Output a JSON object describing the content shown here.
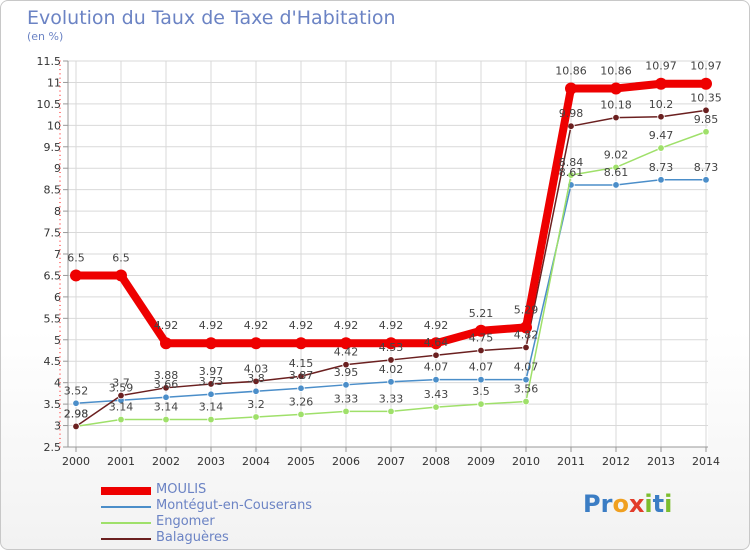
{
  "title": "Evolution du Taux de Taxe d'Habitation",
  "unit_label": "(en %)",
  "logo": [
    "P",
    "r",
    "o",
    "x",
    "i",
    "t",
    "i"
  ],
  "logo_colors": [
    "#3b7dc4",
    "#3b7dc4",
    "#f0a020",
    "#e23c2a",
    "#7dbd2e",
    "#3b7dc4",
    "#7dbd2e"
  ],
  "chart_data": {
    "type": "line",
    "title": "Evolution du Taux de Taxe d'Habitation",
    "ylabel": "(en %)",
    "xlabel": "",
    "ylim": [
      2.5,
      11.5
    ],
    "yticks": [
      2.5,
      3,
      3.5,
      4,
      4.5,
      5,
      5.5,
      6,
      6.5,
      7,
      7.5,
      8,
      8.5,
      9,
      9.5,
      10,
      10.5,
      11,
      11.5
    ],
    "grid": true,
    "legend_position": "bottom-left",
    "x": [
      "2000",
      "2001",
      "2002",
      "2003",
      "2004",
      "2005",
      "2006",
      "2007",
      "2008",
      "2009",
      "2010",
      "2011",
      "2012",
      "2013",
      "2014"
    ],
    "series": [
      {
        "name": "MOULIS",
        "color": "#ee0000",
        "values": [
          6.5,
          6.5,
          4.92,
          4.92,
          4.92,
          4.92,
          4.92,
          4.92,
          4.92,
          5.21,
          5.29,
          10.86,
          10.86,
          10.97,
          10.97
        ],
        "labels": [
          "6.5",
          "6.5",
          "4.92",
          "4.92",
          "4.92",
          "4.92",
          "4.92",
          "4.92",
          "4.92",
          "5.21",
          "5.29",
          "10.86",
          "10.86",
          "10.97",
          "10.97"
        ]
      },
      {
        "name": "Montégut-en-Couserans",
        "color": "#4b8ec9",
        "values": [
          3.52,
          3.59,
          3.66,
          3.73,
          3.8,
          3.87,
          3.95,
          4.02,
          4.07,
          4.07,
          4.07,
          8.61,
          8.61,
          8.73,
          8.73
        ],
        "labels": [
          "3.52",
          "3.59",
          "3.66",
          "3.73",
          "3.8",
          "3.87",
          "3.95",
          "4.02",
          "4.07",
          "4.07",
          "4.07",
          "8.61",
          "8.61",
          "8.73",
          "8.73"
        ]
      },
      {
        "name": "Engomer",
        "color": "#9fe06a",
        "values": [
          2.98,
          3.14,
          3.14,
          3.14,
          3.2,
          3.26,
          3.33,
          3.33,
          3.43,
          3.5,
          3.56,
          8.84,
          9.02,
          9.47,
          9.85
        ],
        "labels": [
          "2.98",
          "3.14",
          "3.14",
          "3.14",
          "3.2",
          "3.26",
          "3.33",
          "3.33",
          "3.43",
          "3.5",
          "3.56",
          "8.84",
          "9.02",
          "9.47",
          "9.85"
        ]
      },
      {
        "name": "Balaguères",
        "color": "#6b2020",
        "values": [
          2.98,
          3.7,
          3.88,
          3.97,
          4.03,
          4.15,
          4.42,
          4.53,
          4.64,
          4.75,
          4.82,
          9.98,
          10.18,
          10.2,
          10.35
        ],
        "labels": [
          "2.98",
          "3.7",
          "3.88",
          "3.97",
          "4.03",
          "4.15",
          "4.42",
          "4.53",
          "4.64",
          "4.75",
          "4.82",
          "9.98",
          "10.18",
          "10.2",
          "10.35"
        ]
      }
    ]
  }
}
